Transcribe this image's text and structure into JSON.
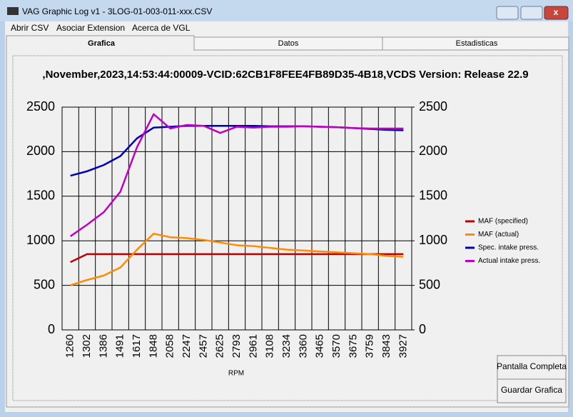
{
  "window": {
    "title": "VAG Graphic Log  v1 -  3LOG-01-003-011-xxx.CSV",
    "menu": [
      "Abrir CSV",
      "Asociar Extension",
      "Acerca de VGL"
    ],
    "tabs": [
      "Grafica",
      "Datos",
      "Estadisticas"
    ],
    "buttons": [
      "Pantalla Completa",
      "Guardar Grafica"
    ]
  },
  "chart_data": {
    "type": "line",
    "title": ",November,2023,14:53:44:00009-VCID:62CB1F8FEE4FB89D35-4B18,VCDS Version: Release 22.9",
    "x_label": "RPM",
    "categories": [
      "1260",
      "1302",
      "1386",
      "1491",
      "1617",
      "1848",
      "2058",
      "2247",
      "2457",
      "2625",
      "2793",
      "2961",
      "3108",
      "3234",
      "3360",
      "3465",
      "3570",
      "3675",
      "3759",
      "3843",
      "3927"
    ],
    "series": [
      {
        "name": "MAF (specified)",
        "color": "#c00000",
        "values": [
          760,
          850,
          850,
          850,
          850,
          850,
          850,
          850,
          850,
          850,
          850,
          850,
          850,
          850,
          850,
          850,
          850,
          850,
          850,
          850,
          850
        ]
      },
      {
        "name": "MAF (actual)",
        "color": "#ff8c00",
        "values": [
          500,
          560,
          610,
          700,
          900,
          1080,
          1040,
          1030,
          1010,
          980,
          950,
          940,
          920,
          900,
          890,
          880,
          870,
          860,
          850,
          830,
          820
        ]
      },
      {
        "name": "Spec. intake press.",
        "color": "#0000b0",
        "values": [
          1730,
          1780,
          1850,
          1950,
          2150,
          2270,
          2280,
          2290,
          2290,
          2290,
          2290,
          2290,
          2285,
          2285,
          2285,
          2280,
          2275,
          2265,
          2255,
          2245,
          2240
        ]
      },
      {
        "name": "Actual intake press.",
        "color": "#c000c0",
        "values": [
          1050,
          1180,
          1320,
          1550,
          2050,
          2420,
          2260,
          2300,
          2290,
          2210,
          2280,
          2270,
          2280,
          2280,
          2285,
          2280,
          2275,
          2265,
          2260,
          2260,
          2260
        ]
      }
    ],
    "ylim": [
      0,
      2500
    ],
    "yticks": [
      0,
      500,
      1000,
      1500,
      2000,
      2500
    ],
    "y2lim": [
      0,
      2500
    ],
    "y2ticks": [
      0,
      500,
      1000,
      1500,
      2000,
      2500
    ],
    "grid": true,
    "legend": "right"
  }
}
